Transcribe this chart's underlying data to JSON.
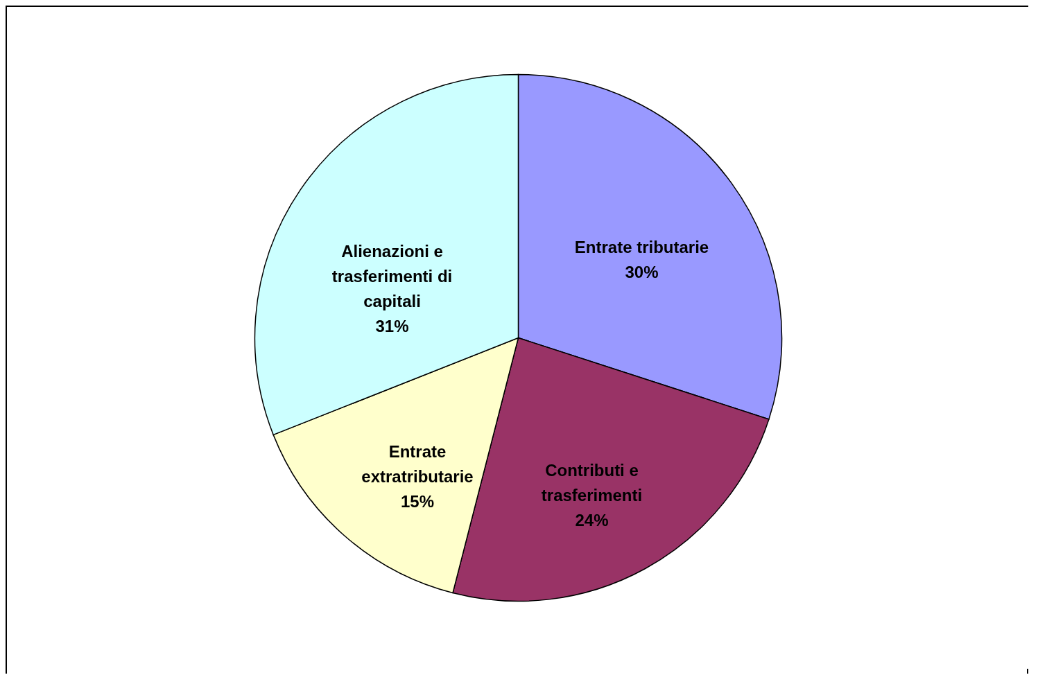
{
  "chart_data": {
    "type": "pie",
    "categories": [
      "Entrate tributarie",
      "Contributi e trasferimenti",
      "Entrate extratributarie",
      "Alienazioni e trasferimenti di capitali"
    ],
    "values": [
      30,
      24,
      15,
      31
    ],
    "value_labels": [
      "30%",
      "24%",
      "15%",
      "31%"
    ],
    "colors": [
      "#9999ff",
      "#993366",
      "#ffffcc",
      "#ccffff"
    ]
  }
}
